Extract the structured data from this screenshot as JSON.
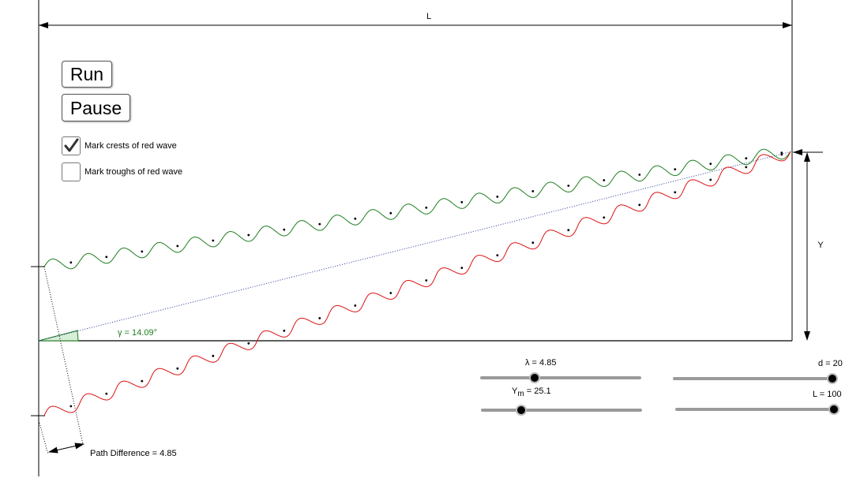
{
  "buttons": {
    "run_label": "Run",
    "pause_label": "Pause"
  },
  "checkboxes": [
    {
      "label": "Mark crests of red wave",
      "checked": true
    },
    {
      "label": "Mark troughs of red wave",
      "checked": false
    }
  ],
  "diagram": {
    "length_label": "L",
    "height_label": "Y",
    "angle_label": "γ = 14.09°",
    "path_difference_label": "Path Difference = 4.85"
  },
  "sliders": {
    "lambda": {
      "label": "λ = 4.85",
      "value": 4.85,
      "fraction": 0.34
    },
    "ym": {
      "label_main": "Y",
      "label_sub": "m",
      "label_value": " = 25.1",
      "value": 25.1,
      "fraction": 0.25
    },
    "d": {
      "label": "d = 20",
      "value": 20,
      "fraction": 1.0
    },
    "L": {
      "label": "L = 100",
      "value": 100,
      "fraction": 1.0
    }
  },
  "colors": {
    "green_wave": "#1e7d1e",
    "red_wave": "#dd1111",
    "angle_fill": "#d6efd6",
    "angle_text": "#1e7d1e"
  }
}
